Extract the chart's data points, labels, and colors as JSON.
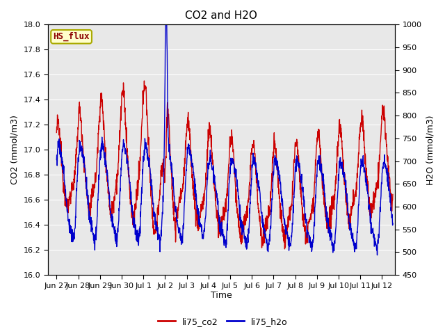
{
  "title": "CO2 and H2O",
  "xlabel": "Time",
  "ylabel_left": "CO2 (mmol/m3)",
  "ylabel_right": "H2O (mmol/m3)",
  "ylim_left": [
    16.0,
    18.0
  ],
  "ylim_right": [
    450,
    1000
  ],
  "yticks_left": [
    16.0,
    16.2,
    16.4,
    16.6,
    16.8,
    17.0,
    17.2,
    17.4,
    17.6,
    17.8,
    18.0
  ],
  "yticks_right": [
    450,
    500,
    550,
    600,
    650,
    700,
    750,
    800,
    850,
    900,
    950,
    1000
  ],
  "color_co2": "#cc0000",
  "color_h2o": "#0000cc",
  "label_co2": "li75_co2",
  "label_h2o": "li75_h2o",
  "annotation_text": "HS_flux",
  "annotation_color": "#8b0000",
  "annotation_bg": "#ffffcc",
  "annotation_border": "#aaaa00",
  "background_color": "#e8e8e8",
  "title_fontsize": 11,
  "axis_fontsize": 9,
  "tick_fontsize": 8,
  "legend_fontsize": 9,
  "linewidth": 1.0,
  "xtick_labels": [
    "Jun 27",
    "Jun 28",
    "Jun 29",
    "Jun 30",
    "Jul 1",
    "Jul 2",
    "Jul 3",
    "Jul 4",
    "Jul 5",
    "Jul 6",
    "Jul 7",
    "Jul 8",
    "Jul 9",
    "Jul 10",
    "Jul 11",
    "Jul 12"
  ],
  "xtick_positions": [
    0,
    1,
    2,
    3,
    4,
    5,
    6,
    7,
    8,
    9,
    10,
    11,
    12,
    13,
    14,
    15
  ]
}
